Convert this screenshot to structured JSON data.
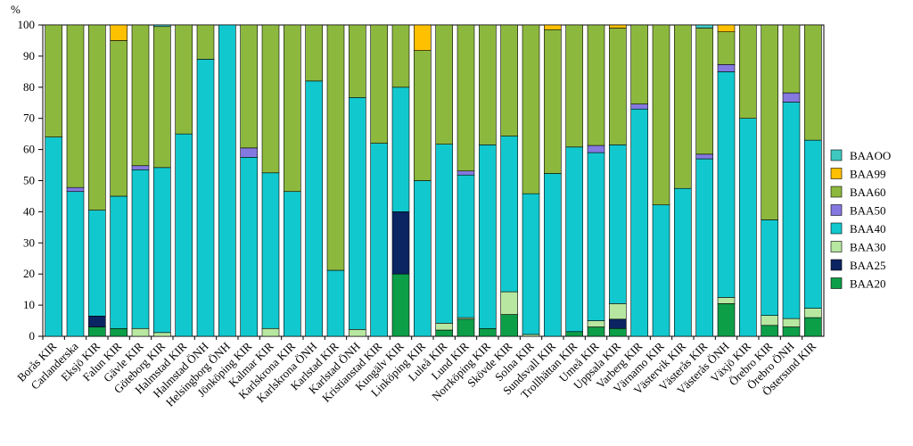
{
  "chart_data": {
    "type": "stacked-bar",
    "title": "",
    "ylabel": "%",
    "xlabel": "",
    "ylim": [
      0,
      100
    ],
    "yticks": [
      0,
      10,
      20,
      30,
      40,
      50,
      60,
      70,
      80,
      90,
      100
    ],
    "legend_position": "right",
    "categories": [
      "Borås KIR",
      "Carlanderska",
      "Eksjö KIR",
      "Falun KIR",
      "Gävle KIR",
      "Göteborg KIR",
      "Halmstad KIR",
      "Halmstad ÖNH",
      "Helsingborg ÖNH",
      "Jönköping KIR",
      "Kalmar KIR",
      "Karlskrona KIR",
      "Karlskrona ÖNH",
      "Karlstad KIR",
      "Karlstad ÖNH",
      "Kristianstad KIR",
      "Kungälv KIR",
      "Linköping KIR",
      "Luleå KIR",
      "Lund KIR",
      "Norrköping KIR",
      "Skövde KIR",
      "Solna KIR",
      "Sundsvall KIR",
      "Trollhättan KIR",
      "Umeå KIR",
      "Uppsala KIR",
      "Varberg KIR",
      "Värnamo KIR",
      "Västervik KIR",
      "Västerås KIR",
      "Västerås ÖNH",
      "Växjö KIR",
      "Örebro KIR",
      "Örebro ÖNH",
      "Östersund KIR"
    ],
    "series": [
      {
        "name": "BAA20",
        "color": "#0d9e48",
        "values": [
          0,
          0,
          3,
          2.5,
          0,
          0,
          0,
          0,
          0,
          0,
          0,
          0,
          0,
          0,
          0,
          0,
          20,
          0,
          2,
          5.5,
          2.5,
          7,
          0,
          0,
          1.5,
          3,
          2.5,
          0,
          0,
          0,
          0,
          10.5,
          0,
          3.5,
          3,
          6
        ]
      },
      {
        "name": "BAA25",
        "color": "#0b2462",
        "values": [
          0,
          0,
          3.5,
          0,
          0,
          0,
          0,
          0,
          0,
          0,
          0,
          0,
          0,
          0,
          0,
          0,
          20,
          0,
          0,
          0,
          0,
          0,
          0,
          0,
          0,
          0,
          3,
          0,
          0,
          0,
          0,
          0,
          0,
          0,
          0,
          0
        ]
      },
      {
        "name": "BAA30",
        "color": "#b7e7a0",
        "values": [
          0,
          0,
          0,
          0,
          2.5,
          1.2,
          0,
          0,
          0,
          0,
          2.5,
          0,
          0,
          0,
          2.2,
          0,
          0,
          0,
          2.2,
          0.5,
          0,
          7.3,
          0.6,
          0,
          0,
          2,
          5,
          0,
          0,
          0,
          0,
          2,
          0,
          3.2,
          2.7,
          3
        ]
      },
      {
        "name": "BAA40",
        "color": "#12c8cf",
        "values": [
          64,
          46.5,
          34,
          42.5,
          51,
          53,
          65,
          89,
          100,
          57.5,
          50,
          46.5,
          82,
          21.2,
          74.5,
          62,
          40,
          50,
          57.5,
          45.8,
          59,
          50,
          45.2,
          52.3,
          59.3,
          54,
          51,
          73,
          42.2,
          47.5,
          57,
          72.5,
          70,
          30.7,
          69.5,
          54
        ]
      },
      {
        "name": "BAA50",
        "color": "#8578e0",
        "values": [
          0,
          1.3,
          0,
          0,
          1.3,
          0,
          0,
          0,
          0,
          3,
          0,
          0,
          0,
          0,
          0,
          0,
          0,
          0,
          0,
          1.3,
          0,
          0,
          0,
          0,
          0,
          2.3,
          0,
          1.6,
          0,
          0,
          1.5,
          2.3,
          0,
          0,
          3,
          0
        ]
      },
      {
        "name": "BAA60",
        "color": "#8db83e",
        "values": [
          36,
          52.2,
          59.5,
          50,
          45.2,
          45.3,
          35,
          11,
          0,
          39.5,
          47.5,
          53.5,
          18,
          78.8,
          23.3,
          38,
          20,
          41.8,
          38.3,
          46.9,
          38.5,
          35.7,
          54.2,
          46.2,
          39.2,
          38.7,
          37.5,
          25.4,
          57.8,
          52.5,
          40.5,
          10.5,
          30,
          62.6,
          21.8,
          37
        ]
      },
      {
        "name": "BAA99",
        "color": "#ffc000",
        "values": [
          0,
          0,
          0,
          5,
          0,
          0,
          0,
          0,
          0,
          0,
          0,
          0,
          0,
          0,
          0,
          0,
          0,
          8.2,
          0,
          0,
          0,
          0,
          0,
          1.5,
          0,
          0,
          1,
          0,
          0,
          0,
          0,
          2.2,
          0,
          0,
          0,
          0
        ]
      },
      {
        "name": "BAAOO",
        "color": "#3ec8c0",
        "values": [
          0,
          0,
          0,
          0,
          0,
          0.5,
          0,
          0,
          0,
          0,
          0,
          0,
          0,
          0,
          0,
          0,
          0,
          0,
          0,
          0,
          0,
          0,
          0,
          0,
          0,
          0,
          0,
          0,
          0,
          0,
          1,
          0,
          0,
          0,
          0,
          0
        ]
      }
    ],
    "legend": [
      "BAAOO",
      "BAA99",
      "BAA60",
      "BAA50",
      "BAA40",
      "BAA30",
      "BAA25",
      "BAA20"
    ]
  }
}
